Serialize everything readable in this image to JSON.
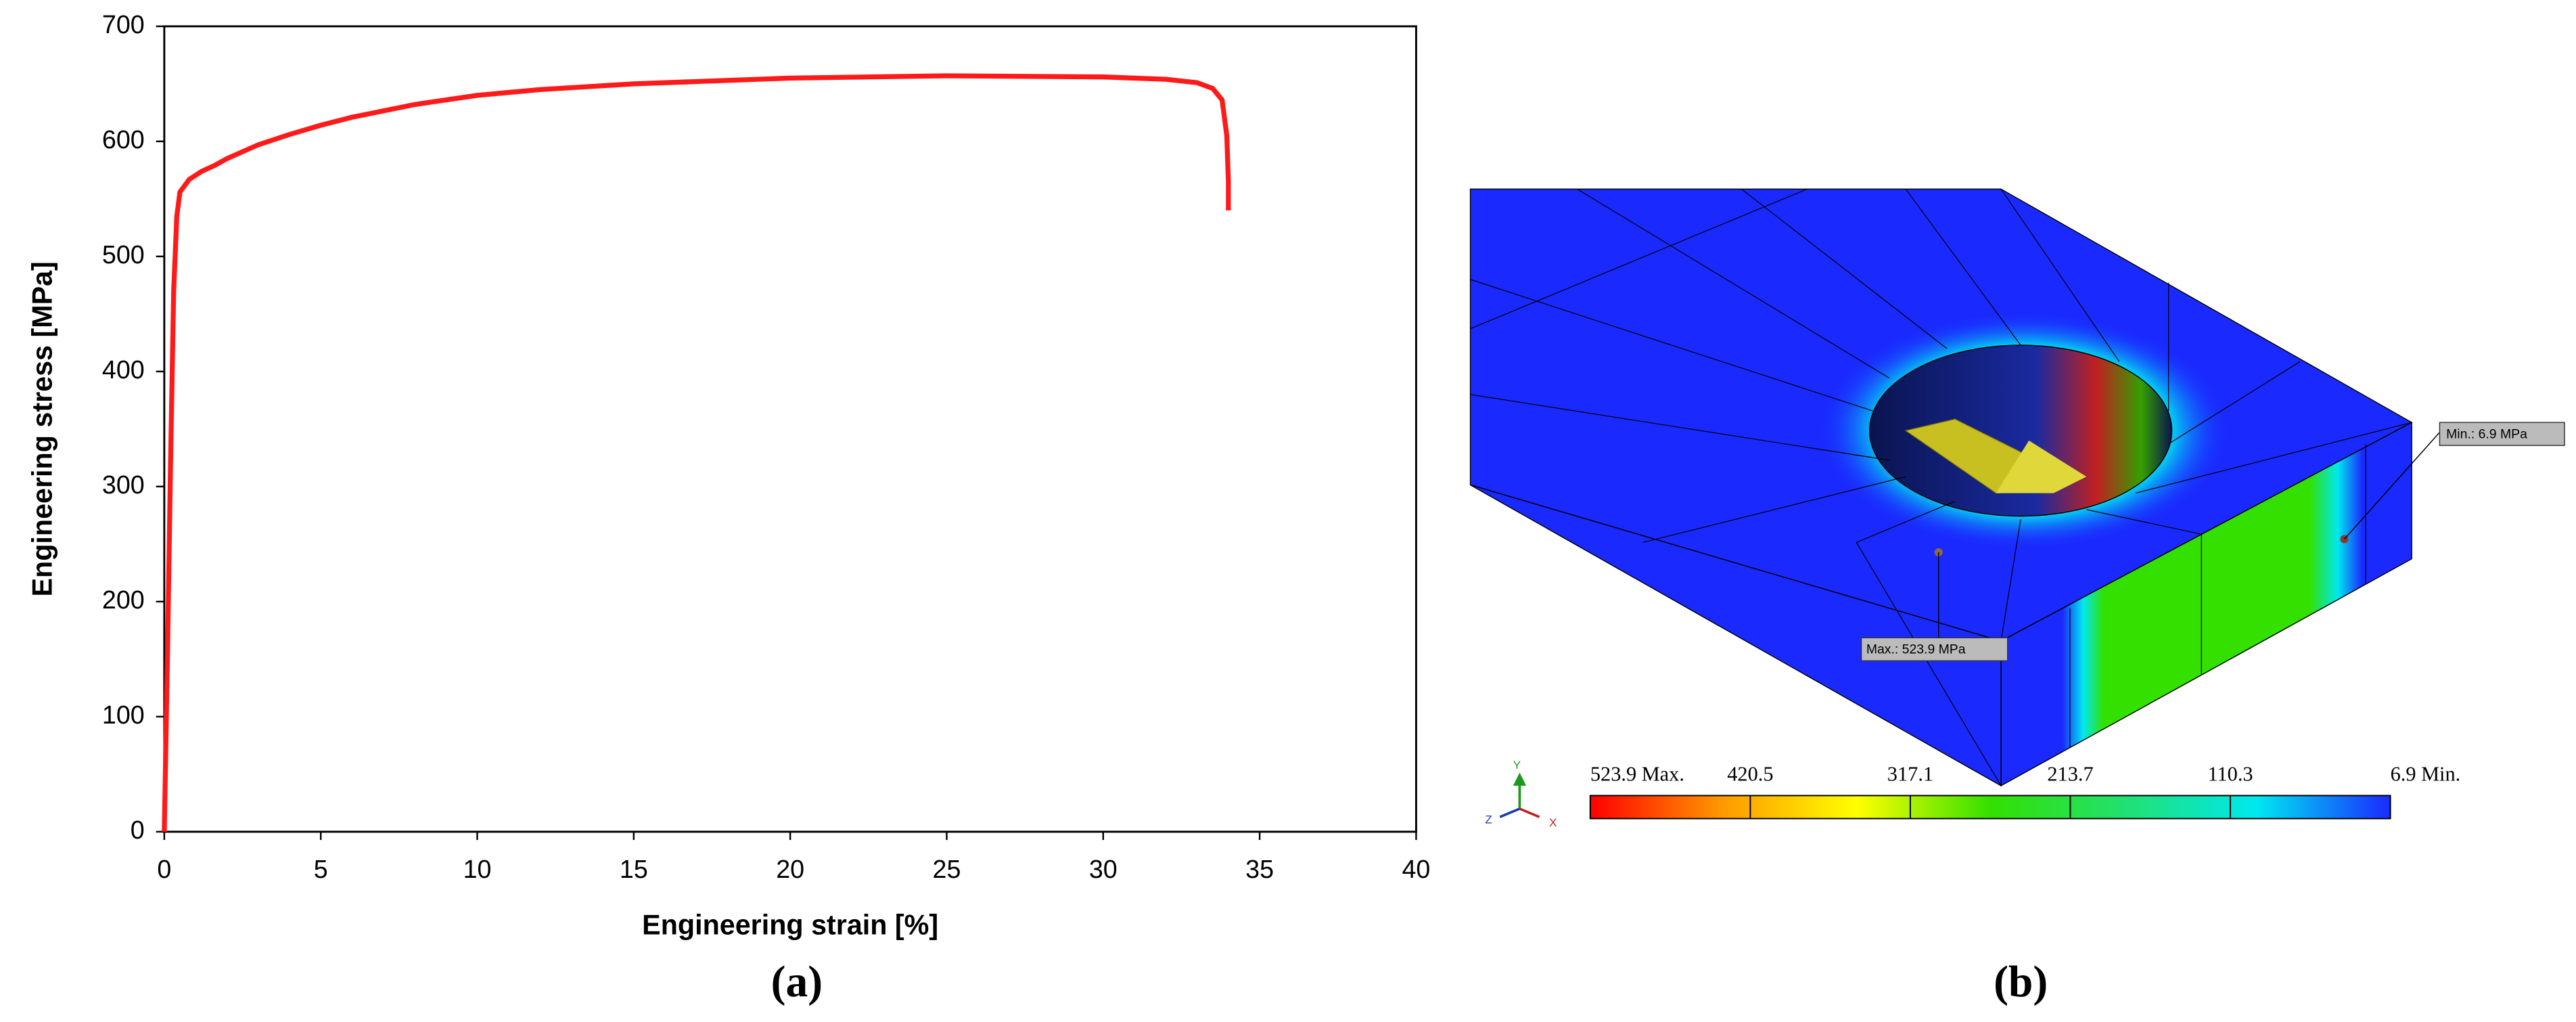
{
  "chart_data": [
    {
      "type": "line",
      "caption": "(a)",
      "xlabel": "Engineering strain [%]",
      "ylabel": "Engineering stress [MPa]",
      "x": [
        0,
        0.1,
        0.2,
        0.3,
        0.4,
        0.5,
        0.8,
        1.2,
        1.6,
        2,
        3,
        4,
        5,
        6,
        8,
        10,
        12,
        15,
        20,
        25,
        30,
        32,
        33,
        33.5,
        33.8,
        33.95,
        34,
        34
      ],
      "values": [
        0,
        150,
        320,
        470,
        535,
        556,
        567,
        574,
        579,
        585,
        597,
        606,
        614,
        621,
        632,
        640,
        645,
        650,
        655,
        657,
        656,
        654,
        651,
        646,
        636,
        605,
        565,
        540
      ],
      "color": "#ff1a1a",
      "xlim": [
        0,
        40
      ],
      "xticks": [
        0,
        5,
        10,
        15,
        20,
        25,
        30,
        35,
        40
      ],
      "ylim": [
        0,
        700
      ],
      "yticks": [
        0,
        100,
        200,
        300,
        400,
        500,
        600,
        700
      ]
    },
    {
      "type": "colorbar",
      "caption": "(b)",
      "xlim": [
        523.9,
        6.9
      ],
      "ticks": [
        {
          "value": 523.9,
          "label": "523.9 Max."
        },
        {
          "value": 420.5,
          "label": "420.5"
        },
        {
          "value": 317.1,
          "label": "317.1"
        },
        {
          "value": 213.7,
          "label": "213.7"
        },
        {
          "value": 110.3,
          "label": "110.3"
        },
        {
          "value": 6.9,
          "label": "6.9 Min."
        }
      ],
      "colors": [
        "#ff0000",
        "#ff9a00",
        "#ffff00",
        "#33e000",
        "#22e070",
        "#00e8f0",
        "#1a2aff"
      ],
      "max_annotation": "Max.: 523.9 MPa",
      "min_annotation": "Min.: 6.9 MPa",
      "triad_labels": [
        "Y",
        "Z",
        "X"
      ]
    }
  ]
}
